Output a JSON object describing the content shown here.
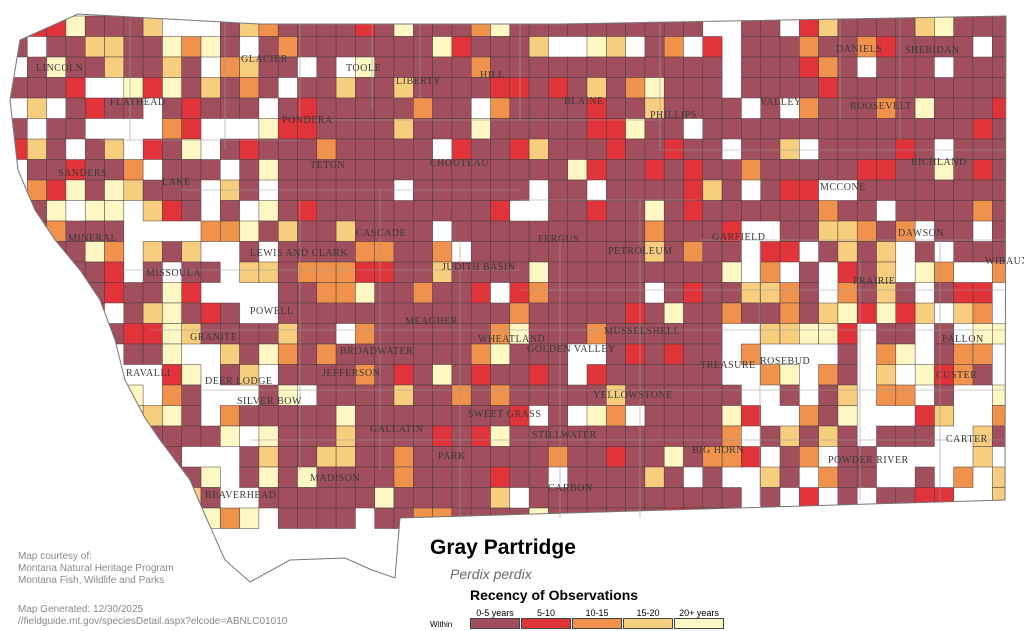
{
  "map": {
    "title": "Gray Partridge",
    "scientific_name": "Perdix perdix",
    "legend_title": "Recency of Observations",
    "legend_prefix": "Within",
    "legend": [
      {
        "label": "0-5 years",
        "color": "#a14f5e"
      },
      {
        "label": "5-10",
        "color": "#e0333a"
      },
      {
        "label": "10-15",
        "color": "#f0924c"
      },
      {
        "label": "15-20",
        "color": "#f7cd7e"
      },
      {
        "label": "20+ years",
        "color": "#fdf7c3"
      }
    ],
    "credits": {
      "line1": "Map courtesy of:",
      "line2": "Montana Natural Heritage Program",
      "line3": "Montana Fish, Wildlife and Parks",
      "generated": "Map Generated: 12/30/2025",
      "url": "//fieldguide.mt.gov/speciesDetail.aspx?elcode=ABNLC01010"
    },
    "counties": [
      "LINCOLN",
      "FLATHEAD",
      "GLACIER",
      "TOOLE",
      "LIBERTY",
      "HILL",
      "BLAINE",
      "PHILLIPS",
      "VALLEY",
      "DANIELS",
      "SHERIDAN",
      "ROOSEVELT",
      "PONDERA",
      "SANDERS",
      "LAKE",
      "TETON",
      "CHOUTEAU",
      "RICHLAND",
      "MCCONE",
      "MINERAL",
      "CASCADE",
      "LEWIS AND CLARK",
      "FERGUS",
      "PETROLEUM",
      "GARFIELD",
      "DAWSON",
      "WIBAUX",
      "MISSOULA",
      "JUDITH BASIN",
      "PRAIRIE",
      "POWELL",
      "MEAGHER",
      "MUSSELSHELL",
      "WHEATLAND",
      "GOLDEN VALLEY",
      "GRANITE",
      "FALLON",
      "BROADWATER",
      "TREASURE",
      "ROSEBUD",
      "RAVALLI",
      "DEER LODGE",
      "JEFFERSON",
      "YELLOWSTONE",
      "SILVER BOW",
      "SWEET GRASS",
      "CUSTER",
      "GALLATIN",
      "STILLWATER",
      "CARTER",
      "PARK",
      "BIG HORN",
      "POWDER RIVER",
      "MADISON",
      "CARBON",
      "BEAVERHEAD"
    ]
  }
}
